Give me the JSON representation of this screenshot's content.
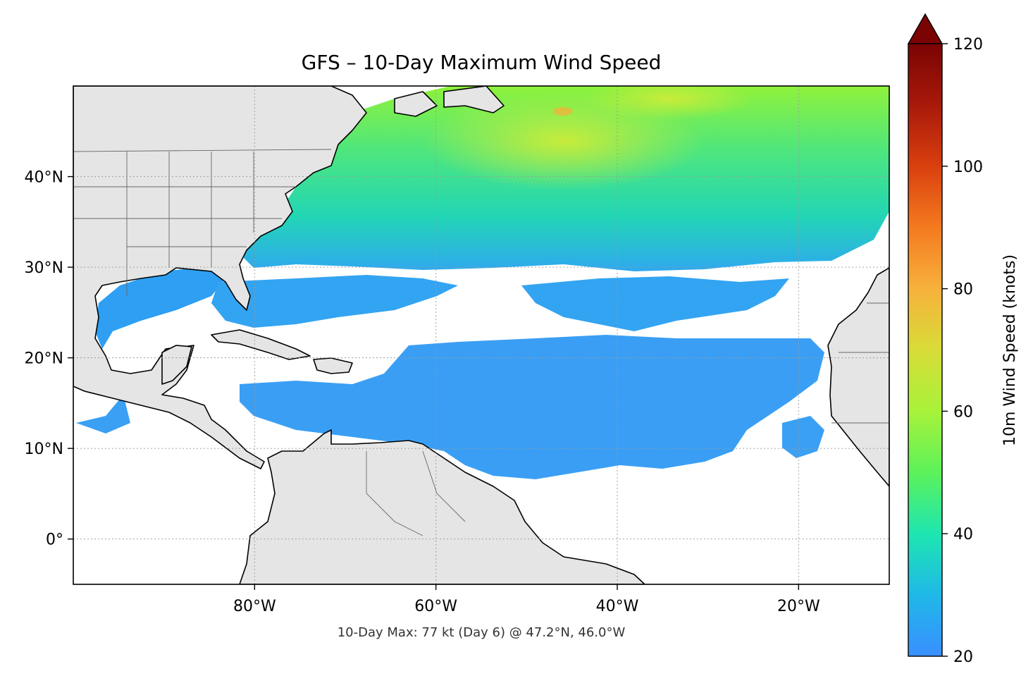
{
  "title": "GFS – 10-Day Maximum Wind Speed",
  "footnote": "10-Day Max: 77 kt (Day 6) @ 47.2°N, 46.0°W",
  "map": {
    "lon_range": [
      -100,
      -10
    ],
    "lat_range": [
      -5,
      50
    ],
    "lon_ticks": [
      {
        "lon": -80,
        "label": "80°W"
      },
      {
        "lon": -60,
        "label": "60°W"
      },
      {
        "lon": -40,
        "label": "40°W"
      },
      {
        "lon": -20,
        "label": "20°W"
      }
    ],
    "lat_ticks": [
      {
        "lat": 40,
        "label": "40°N"
      },
      {
        "lat": 30,
        "label": "30°N"
      },
      {
        "lat": 20,
        "label": "20°N"
      },
      {
        "lat": 10,
        "label": "10°N"
      },
      {
        "lat": 0,
        "label": "0°"
      }
    ],
    "land_color": "#e5e5e5",
    "gridlines": true,
    "max_marker": {
      "lat": 47.2,
      "lon": -46.0,
      "value_kt": 77,
      "day": 6
    }
  },
  "colorbar": {
    "label": "10m Wind Speed (knots)",
    "range": [
      20,
      120
    ],
    "extend": "max",
    "ticks": [
      {
        "value": 20,
        "label": "20"
      },
      {
        "value": 40,
        "label": "40"
      },
      {
        "value": 60,
        "label": "60"
      },
      {
        "value": 80,
        "label": "80"
      },
      {
        "value": 100,
        "label": "100"
      },
      {
        "value": 120,
        "label": "120"
      }
    ],
    "colormap": [
      "#3a8fff",
      "#1fb8e8",
      "#1ee6b0",
      "#5cf25a",
      "#a8f23a",
      "#d8dc38",
      "#f7b13c",
      "#f47a1f",
      "#d9400e",
      "#a8190a",
      "#7a0403"
    ]
  }
}
